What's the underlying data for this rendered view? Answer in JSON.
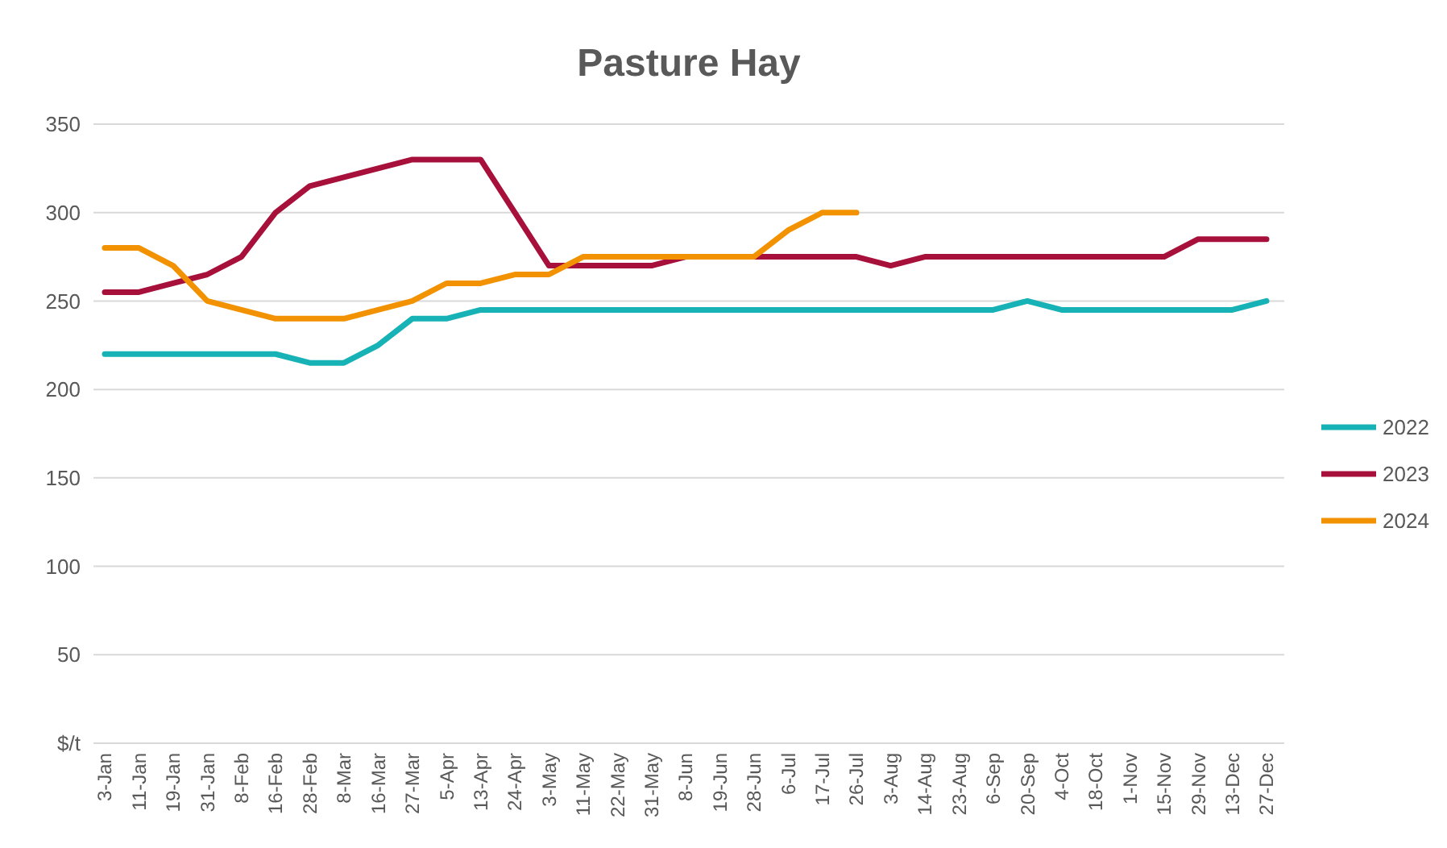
{
  "chart_data": {
    "type": "line",
    "title": "Pasture Hay",
    "categories": [
      "3-Jan",
      "11-Jan",
      "19-Jan",
      "31-Jan",
      "8-Feb",
      "16-Feb",
      "28-Feb",
      "8-Mar",
      "16-Mar",
      "27-Mar",
      "5-Apr",
      "13-Apr",
      "24-Apr",
      "3-May",
      "11-May",
      "22-May",
      "31-May",
      "8-Jun",
      "19-Jun",
      "28-Jun",
      "6-Jul",
      "17-Jul",
      "26-Jul",
      "3-Aug",
      "14-Aug",
      "23-Aug",
      "6-Sep",
      "20-Sep",
      "4-Oct",
      "18-Oct",
      "1-Nov",
      "15-Nov",
      "29-Nov",
      "13-Dec",
      "27-Dec"
    ],
    "series": [
      {
        "name": "2022",
        "color": "#17b2b5",
        "values": [
          220,
          220,
          220,
          220,
          220,
          220,
          215,
          215,
          225,
          240,
          240,
          245,
          245,
          245,
          245,
          245,
          245,
          245,
          245,
          245,
          245,
          245,
          245,
          245,
          245,
          245,
          245,
          250,
          245,
          245,
          245,
          245,
          245,
          245,
          250
        ]
      },
      {
        "name": "2023",
        "color": "#a6103a",
        "values": [
          255,
          255,
          260,
          265,
          275,
          300,
          315,
          320,
          325,
          330,
          330,
          330,
          300,
          270,
          270,
          270,
          270,
          275,
          275,
          275,
          275,
          275,
          275,
          270,
          275,
          275,
          275,
          275,
          275,
          275,
          275,
          275,
          285,
          285,
          285
        ]
      },
      {
        "name": "2024",
        "color": "#f39200",
        "values": [
          280,
          280,
          270,
          250,
          245,
          240,
          240,
          240,
          245,
          250,
          260,
          260,
          265,
          265,
          275,
          275,
          275,
          275,
          275,
          275,
          290,
          300,
          300,
          null,
          null,
          null,
          null,
          null,
          null,
          null,
          null,
          null,
          null,
          null,
          null
        ]
      }
    ],
    "ylim": [
      0,
      350
    ],
    "yticks": [
      {
        "value": 0,
        "label": "$/t"
      },
      50,
      100,
      150,
      200,
      250,
      300,
      350
    ],
    "grid": "y",
    "legend": "right",
    "marker": "none",
    "line_style": "solid"
  }
}
